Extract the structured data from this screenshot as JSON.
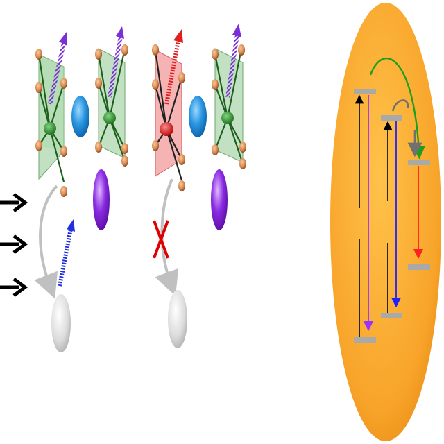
{
  "colors": {
    "background": "#ffffff",
    "oxygen_copper": "#d98a4e",
    "polyhedron_green": "#8fc98f",
    "polyhedron_red": "#f08080",
    "center_green": "#2e8b2e",
    "center_red": "#e02020",
    "ion_blue": "#1f8fdc",
    "ion_purple": "#8a2be2",
    "ion_grey": "#d8d8d8",
    "arrow_grey": "#c0c0c0",
    "cross_red": "#e00000",
    "ellipse_orange": "#f6a623",
    "level_grey": "#a9a9a9",
    "transition_violet": "#9b30ff",
    "transition_blue": "#2020ff",
    "transition_red": "#ff2020",
    "transfer_green": "#1e9e1e",
    "external_arrow": "#000000"
  },
  "diagram": {
    "left_panel": {
      "incoming_arrows": 3,
      "units": [
        {
          "id": "unit-1",
          "polyhedron": "green",
          "spin": "violet",
          "spin_dash": "striped"
        },
        {
          "id": "unit-2",
          "polyhedron": "green",
          "spin": "violet",
          "spin_dash": "striped"
        },
        {
          "id": "unit-3",
          "polyhedron": "red",
          "spin": "red",
          "spin_dash": "striped"
        },
        {
          "id": "unit-4",
          "polyhedron": "green",
          "spin": "violet",
          "spin_dash": "striped"
        }
      ],
      "blue_ions": 2,
      "purple_ions": 2,
      "grey_ions": 2,
      "transfers": [
        {
          "from": "unit-1",
          "to": "grey-ion-1",
          "blocked": false,
          "spin": "blue"
        },
        {
          "from": "unit-3",
          "to": "grey-ion-2",
          "blocked": true
        }
      ]
    },
    "right_panel": {
      "shape": "ellipse",
      "levels": [
        {
          "id": "level-a-high"
        },
        {
          "id": "level-a-low"
        },
        {
          "id": "level-b-high"
        },
        {
          "id": "level-b-low"
        },
        {
          "id": "level-c-high"
        },
        {
          "id": "level-c-low"
        }
      ],
      "transitions": [
        {
          "id": "abs-a",
          "color": "black",
          "direction": "up"
        },
        {
          "id": "emit-a",
          "color": "violet",
          "direction": "down"
        },
        {
          "id": "abs-b",
          "color": "black",
          "direction": "up"
        },
        {
          "id": "emit-b",
          "color": "blue",
          "direction": "down"
        },
        {
          "id": "emit-c",
          "color": "red",
          "direction": "down"
        }
      ],
      "energy_transfers": [
        {
          "from": "level-a-high",
          "to": "level-c-high",
          "color": "green"
        },
        {
          "from": "level-b-high",
          "to": "level-c-high",
          "color": "grey"
        }
      ]
    }
  }
}
